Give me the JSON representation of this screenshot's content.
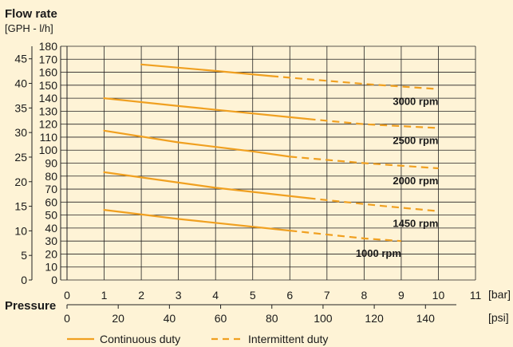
{
  "chart_data": {
    "type": "line",
    "title": "Flow rate",
    "subtitle": "[GPH - l/h]",
    "xlabel": "Pressure",
    "x_unit_bar": "[bar]",
    "x_unit_psi": "[psi]",
    "xlim_bar": [
      0,
      11
    ],
    "x_ticks_bar": [
      "0",
      "1",
      "2",
      "3",
      "4",
      "5",
      "6",
      "7",
      "8",
      "9",
      "10",
      "11"
    ],
    "x_ticks_psi": [
      "0",
      "20",
      "40",
      "60",
      "80",
      "100",
      "120",
      "140"
    ],
    "ylim_lh": [
      0,
      180
    ],
    "y_ticks_lh": [
      "0",
      "10",
      "20",
      "30",
      "40",
      "50",
      "60",
      "70",
      "80",
      "90",
      "100",
      "110",
      "120",
      "130",
      "140",
      "150",
      "160",
      "170",
      "180"
    ],
    "y_ticks_gph": [
      "0",
      "5",
      "10",
      "15",
      "20",
      "25",
      "30",
      "35",
      "40",
      "45"
    ],
    "grid": true,
    "series": [
      {
        "name": "3000 rpm",
        "continuous": {
          "x": [
            2,
            4,
            5.5
          ],
          "y": [
            166,
            161,
            157
          ]
        },
        "intermittent": {
          "x": [
            5.5,
            8,
            10
          ],
          "y": [
            157,
            151,
            147
          ]
        }
      },
      {
        "name": "2500 rpm",
        "continuous": {
          "x": [
            1,
            3,
            6.5
          ],
          "y": [
            140,
            134,
            124
          ]
        },
        "intermittent": {
          "x": [
            6.5,
            8,
            10
          ],
          "y": [
            124,
            120,
            117
          ]
        }
      },
      {
        "name": "2000 rpm",
        "continuous": {
          "x": [
            1,
            3,
            5,
            6
          ],
          "y": [
            115,
            106,
            99,
            95
          ]
        },
        "intermittent": {
          "x": [
            6,
            8,
            10
          ],
          "y": [
            95,
            90,
            86
          ]
        }
      },
      {
        "name": "1450 rpm",
        "continuous": {
          "x": [
            1,
            4,
            6.5
          ],
          "y": [
            83,
            71,
            63
          ]
        },
        "intermittent": {
          "x": [
            6.5,
            8.5,
            10
          ],
          "y": [
            63,
            57,
            53
          ]
        }
      },
      {
        "name": "1000 rpm",
        "continuous": {
          "x": [
            1,
            3,
            6
          ],
          "y": [
            54,
            47,
            38
          ]
        },
        "intermittent": {
          "x": [
            6,
            8,
            9
          ],
          "y": [
            38,
            32,
            30
          ]
        }
      }
    ],
    "legend": {
      "continuous": "Continuous duty",
      "intermittent": "Intermittent duty",
      "position": "bottom"
    },
    "colors": {
      "line": "#f0a020",
      "background": "#fef3d6",
      "grid": "#222222"
    }
  }
}
